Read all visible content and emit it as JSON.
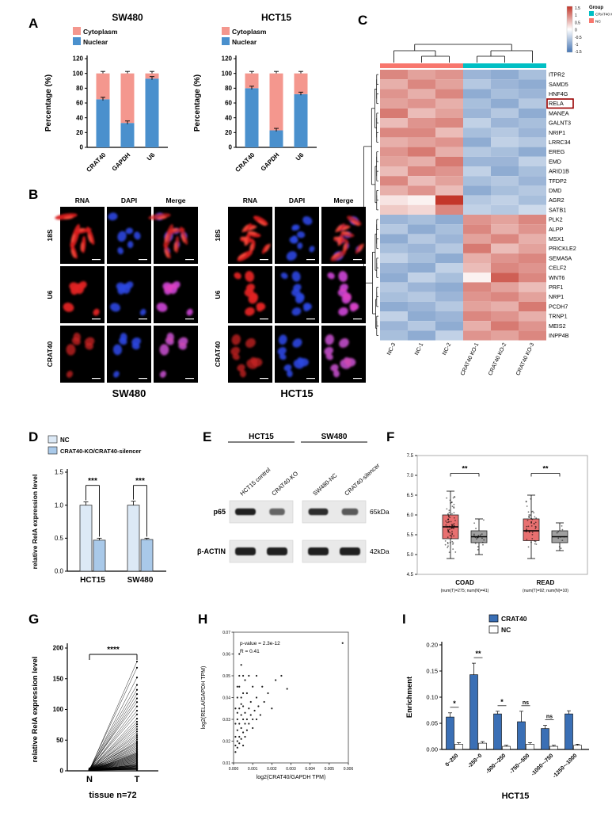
{
  "figure": {
    "panel_labels": {
      "A": "A",
      "B": "B",
      "C": "C",
      "D": "D",
      "E": "E",
      "F": "F",
      "G": "G",
      "H": "H",
      "I": "I"
    }
  },
  "colors": {
    "cytoplasm": "#F4978E",
    "nuclear": "#4A90CD",
    "nc_bar": "#DCE9F6",
    "ko_bar": "#A9C9E9",
    "tumor_box": "#E87070",
    "normal_box": "#A0A0A0",
    "crat40_bar": "#3A6FB5",
    "heat_pos": "#C3372B",
    "heat_neg": "#4575B4",
    "group_ko": "#00BFC4",
    "group_nc": "#F8766D"
  },
  "panelA": {
    "legend": [
      {
        "label": "Cytoplasm"
      },
      {
        "label": "Nuclear"
      }
    ],
    "ylabel": "Percentage (%)",
    "yticks": [
      0,
      20,
      40,
      60,
      80,
      100,
      120
    ],
    "charts": [
      {
        "title": "SW480",
        "categories": [
          "CRAT40",
          "GAPDH",
          "U6"
        ],
        "nuclear": [
          65,
          33,
          93
        ],
        "cytoplasm": [
          35,
          67,
          7
        ]
      },
      {
        "title": "HCT15",
        "categories": [
          "CRAT40",
          "GAPDH",
          "U6"
        ],
        "nuclear": [
          80,
          23,
          72
        ],
        "cytoplasm": [
          20,
          77,
          28
        ]
      }
    ]
  },
  "panelB": {
    "col_headers": [
      "RNA",
      "DAPI",
      "Merge"
    ],
    "row_labels": [
      "18S",
      "U6",
      "CRAT40"
    ],
    "cell_lines": [
      "SW480",
      "HCT15"
    ]
  },
  "panelC": {
    "genes": [
      "ITPR2",
      "SAMD5",
      "HNF4G",
      "RELA",
      "MANEA",
      "GALNT3",
      "NRIP1",
      "LRRC34",
      "EREG",
      "EMD",
      "ARID1B",
      "TFDP2",
      "DMD",
      "AGR2",
      "SATB1",
      "PLK2",
      "ALPP",
      "MSX1",
      "PRICKLE2",
      "SEMA5A",
      "CELF2",
      "WNT6",
      "PRF1",
      "NRP1",
      "PCDH7",
      "TRNP1",
      "MEIS2",
      "INPP4B"
    ],
    "highlight_gene": "RELA",
    "columns": [
      "NC-3",
      "NC-1",
      "NC-2",
      "CRAT40 KO-1",
      "CRAT40 KO-2",
      "CRAT40 KO-3"
    ],
    "matrix": [
      [
        0.9,
        0.7,
        0.8,
        -0.8,
        -0.9,
        -0.7
      ],
      [
        0.6,
        0.9,
        0.7,
        -0.6,
        -0.8,
        -0.9
      ],
      [
        0.8,
        0.6,
        0.9,
        -0.9,
        -0.7,
        -0.8
      ],
      [
        0.7,
        0.8,
        0.6,
        -0.7,
        -0.9,
        -0.6
      ],
      [
        1.0,
        0.5,
        0.7,
        -0.8,
        -0.6,
        -0.9
      ],
      [
        0.5,
        0.8,
        0.9,
        -0.5,
        -0.8,
        -0.7
      ],
      [
        0.9,
        0.9,
        0.5,
        -0.7,
        -0.6,
        -0.8
      ],
      [
        0.6,
        0.7,
        0.8,
        -0.9,
        -0.5,
        -0.6
      ],
      [
        0.8,
        1.0,
        0.6,
        -0.6,
        -0.7,
        -0.9
      ],
      [
        0.7,
        0.6,
        1.0,
        -0.8,
        -0.8,
        -0.5
      ],
      [
        0.5,
        0.9,
        0.8,
        -0.5,
        -0.9,
        -0.7
      ],
      [
        0.9,
        0.5,
        0.7,
        -0.7,
        -0.6,
        -0.8
      ],
      [
        0.6,
        0.8,
        0.5,
        -0.9,
        -0.7,
        -0.6
      ],
      [
        0.2,
        0.1,
        1.5,
        -0.6,
        -0.5,
        -0.7
      ],
      [
        0.4,
        0.3,
        0.9,
        -0.5,
        -0.6,
        -0.4
      ],
      [
        -0.8,
        -0.7,
        -0.9,
        0.8,
        0.7,
        0.9
      ],
      [
        -0.6,
        -0.9,
        -0.7,
        0.9,
        0.6,
        0.8
      ],
      [
        -0.9,
        -0.6,
        -0.8,
        0.7,
        0.9,
        0.6
      ],
      [
        -0.7,
        -0.8,
        -0.6,
        1.0,
        0.5,
        0.7
      ],
      [
        -0.5,
        -0.7,
        -0.9,
        0.6,
        0.8,
        0.9
      ],
      [
        -0.8,
        -0.9,
        -0.5,
        0.5,
        0.9,
        0.8
      ],
      [
        -0.9,
        -0.5,
        -0.7,
        0.1,
        1.2,
        0.9
      ],
      [
        -0.6,
        -0.8,
        -0.9,
        0.9,
        0.7,
        0.5
      ],
      [
        -0.7,
        -0.6,
        -0.8,
        0.8,
        0.9,
        0.7
      ],
      [
        -0.9,
        -0.8,
        -0.6,
        0.7,
        0.6,
        1.0
      ],
      [
        -0.5,
        -0.9,
        -0.8,
        0.9,
        0.8,
        0.6
      ],
      [
        -0.8,
        -0.6,
        -0.9,
        0.6,
        1.0,
        0.8
      ],
      [
        -0.7,
        -0.9,
        -0.5,
        0.8,
        0.7,
        0.9
      ]
    ],
    "legend": {
      "group_title": "Group",
      "groups": [
        {
          "label": "CRAT40 KO"
        },
        {
          "label": "NC"
        }
      ],
      "scale_ticks": [
        "1.5",
        "1",
        "0.5",
        "0",
        "-0.5",
        "-1",
        "-1.5"
      ]
    }
  },
  "panelD": {
    "legend": [
      "NC",
      "CRAT40-KO/CRAT40-silencer"
    ],
    "ylabel": "relative RelA expression level",
    "yticks": [
      "0.0",
      "0.5",
      "1.0",
      "1.5"
    ],
    "categories": [
      "HCT15",
      "SW480"
    ],
    "nc": [
      1.0,
      1.0
    ],
    "nc_err": [
      0.05,
      0.06
    ],
    "ko": [
      0.47,
      0.48
    ],
    "ko_err": [
      0.03,
      0.02
    ],
    "sig": [
      "***",
      "***"
    ]
  },
  "panelE": {
    "groups": [
      {
        "title": "HCT15",
        "lanes": [
          "HCT15 control",
          "CRAT40-KO"
        ]
      },
      {
        "title": "SW480",
        "lanes": [
          "SW480-NC",
          "CRAT40-silencer"
        ]
      }
    ],
    "rows": [
      {
        "label": "p65",
        "size": "65kDa",
        "intensity": [
          [
            1.0,
            0.45
          ],
          [
            0.9,
            0.55
          ]
        ]
      },
      {
        "label": "β-ACTIN",
        "size": "42kDa",
        "intensity": [
          [
            1.0,
            1.0
          ],
          [
            1.0,
            1.0
          ]
        ]
      }
    ]
  },
  "panelF": {
    "yticks": [
      "4.5",
      "5.0",
      "5.5",
      "6.0",
      "6.5",
      "7.0",
      "7.5"
    ],
    "groups": [
      {
        "name": "COAD",
        "sub": "(num(T)=275; num(N)=41)",
        "sig": "**",
        "tumor": {
          "min": 4.9,
          "q1": 5.4,
          "med": 5.7,
          "q3": 6.0,
          "max": 6.6
        },
        "normal": {
          "min": 5.0,
          "q1": 5.3,
          "med": 5.45,
          "q3": 5.6,
          "max": 5.9
        }
      },
      {
        "name": "READ",
        "sub": "(num(T)=92; num(N)=10)",
        "sig": "**",
        "tumor": {
          "min": 4.9,
          "q1": 5.35,
          "med": 5.6,
          "q3": 5.9,
          "max": 6.5
        },
        "normal": {
          "min": 5.1,
          "q1": 5.3,
          "med": 5.45,
          "q3": 5.6,
          "max": 5.8
        }
      }
    ]
  },
  "panelG": {
    "ylabel": "relative RelA expression level",
    "yticks": [
      0,
      50,
      100,
      150,
      200
    ],
    "xticks": [
      "N",
      "T"
    ],
    "xlabel": "tissue n=72",
    "sig": "****",
    "pairs": [
      [
        1,
        178
      ],
      [
        2,
        168
      ],
      [
        1,
        152
      ],
      [
        3,
        140
      ],
      [
        2,
        132
      ],
      [
        1,
        125
      ],
      [
        2,
        118
      ],
      [
        4,
        112
      ],
      [
        1,
        105
      ],
      [
        2,
        98
      ],
      [
        3,
        92
      ],
      [
        1,
        85
      ],
      [
        2,
        80
      ],
      [
        1,
        76
      ],
      [
        3,
        72
      ],
      [
        2,
        68
      ],
      [
        1,
        64
      ],
      [
        2,
        60
      ],
      [
        3,
        57
      ],
      [
        1,
        54
      ],
      [
        2,
        51
      ],
      [
        1,
        48
      ],
      [
        2,
        46
      ],
      [
        3,
        44
      ],
      [
        1,
        42
      ],
      [
        2,
        40
      ],
      [
        1,
        38
      ],
      [
        2,
        36
      ],
      [
        1,
        34
      ],
      [
        2,
        32
      ],
      [
        3,
        30
      ],
      [
        1,
        29
      ],
      [
        2,
        28
      ],
      [
        1,
        27
      ],
      [
        2,
        26
      ],
      [
        1,
        25
      ],
      [
        2,
        24
      ],
      [
        1,
        23
      ],
      [
        2,
        22
      ],
      [
        1,
        21
      ],
      [
        2,
        20
      ],
      [
        1,
        19
      ],
      [
        2,
        18
      ],
      [
        1,
        17
      ],
      [
        2,
        16
      ],
      [
        1,
        15
      ],
      [
        2,
        14
      ],
      [
        1,
        13
      ],
      [
        2,
        12
      ],
      [
        1,
        11
      ],
      [
        2,
        10
      ],
      [
        1,
        10
      ],
      [
        2,
        9
      ],
      [
        1,
        9
      ],
      [
        2,
        8
      ],
      [
        1,
        8
      ],
      [
        2,
        7
      ],
      [
        1,
        7
      ],
      [
        2,
        6
      ],
      [
        1,
        6
      ],
      [
        2,
        5
      ],
      [
        1,
        5
      ],
      [
        2,
        5
      ],
      [
        1,
        4
      ],
      [
        2,
        4
      ],
      [
        1,
        4
      ],
      [
        2,
        3
      ],
      [
        1,
        3
      ],
      [
        1,
        3
      ],
      [
        2,
        2
      ],
      [
        1,
        2
      ],
      [
        1,
        2
      ]
    ]
  },
  "panelH": {
    "annotation": [
      "p-value = 2.3e-12",
      "R = 0.41"
    ],
    "xlabel": "log2(CRAT40/GAPDH TPM)",
    "ylabel": "log2(RELA/GAPDH TPM)",
    "xticks": [
      "0.000",
      "0.001",
      "0.002",
      "0.003",
      "0.004",
      "0.005",
      "0.006"
    ],
    "yticks": [
      "0.01",
      "0.02",
      "0.03",
      "0.04",
      "0.05",
      "0.06",
      "0.07"
    ],
    "xmax": 0.006,
    "ymin": 0.01,
    "ymax": 0.07,
    "points": [
      [
        0.0001,
        0.018
      ],
      [
        0.0001,
        0.022
      ],
      [
        0.0002,
        0.025
      ],
      [
        0.0002,
        0.03
      ],
      [
        0.0002,
        0.02
      ],
      [
        0.0003,
        0.035
      ],
      [
        0.0003,
        0.028
      ],
      [
        0.0003,
        0.022
      ],
      [
        0.0003,
        0.045
      ],
      [
        0.0004,
        0.032
      ],
      [
        0.0004,
        0.026
      ],
      [
        0.0004,
        0.04
      ],
      [
        0.0005,
        0.03
      ],
      [
        0.0005,
        0.024
      ],
      [
        0.0005,
        0.036
      ],
      [
        0.0005,
        0.05
      ],
      [
        0.0006,
        0.028
      ],
      [
        0.0006,
        0.033
      ],
      [
        0.0007,
        0.03
      ],
      [
        0.0007,
        0.025
      ],
      [
        0.0007,
        0.042
      ],
      [
        0.0008,
        0.035
      ],
      [
        0.0008,
        0.028
      ],
      [
        0.0009,
        0.032
      ],
      [
        0.0009,
        0.038
      ],
      [
        0.001,
        0.03
      ],
      [
        0.001,
        0.026
      ],
      [
        0.0011,
        0.034
      ],
      [
        0.0012,
        0.04
      ],
      [
        0.0012,
        0.03
      ],
      [
        0.0013,
        0.036
      ],
      [
        0.0014,
        0.032
      ],
      [
        0.0015,
        0.045
      ],
      [
        0.0016,
        0.038
      ],
      [
        0.0018,
        0.042
      ],
      [
        0.002,
        0.035
      ],
      [
        0.0022,
        0.048
      ],
      [
        0.0025,
        0.05
      ],
      [
        0.0028,
        0.044
      ],
      [
        0.0057,
        0.065
      ],
      [
        0.0001,
        0.015
      ],
      [
        0.0002,
        0.017
      ],
      [
        0.0003,
        0.019
      ],
      [
        0.0004,
        0.021
      ],
      [
        0.0005,
        0.018
      ],
      [
        0.0006,
        0.022
      ],
      [
        0.0002,
        0.04
      ],
      [
        0.0003,
        0.05
      ],
      [
        0.0004,
        0.055
      ],
      [
        0.0001,
        0.035
      ],
      [
        0.0002,
        0.045
      ],
      [
        0.0006,
        0.048
      ],
      [
        0.0008,
        0.05
      ],
      [
        0.001,
        0.045
      ],
      [
        0.0012,
        0.05
      ],
      [
        0.0003,
        0.06
      ],
      [
        0.0001,
        0.028
      ],
      [
        0.0002,
        0.033
      ],
      [
        0.0004,
        0.037
      ],
      [
        0.0005,
        0.042
      ]
    ]
  },
  "panelI": {
    "legend": [
      "CRAT40",
      "NC"
    ],
    "ylabel": "Enrichment",
    "yticks": [
      "0.00",
      "0.05",
      "0.10",
      "0.15",
      "0.20"
    ],
    "categories": [
      "0~250",
      "-250~0",
      "-500~-250",
      "-750~-500",
      "-1000~-750",
      "-1250~-1000"
    ],
    "crat40": [
      0.062,
      0.143,
      0.068,
      0.053,
      0.04,
      0.068
    ],
    "nc": [
      0.01,
      0.012,
      0.006,
      0.01,
      0.006,
      0.008
    ],
    "crat40_err": [
      0.008,
      0.022,
      0.005,
      0.02,
      0.006,
      0.006
    ],
    "nc_err": [
      0.003,
      0.003,
      0.002,
      0.003,
      0.002,
      0.002
    ],
    "sig": [
      "*",
      "**",
      "*",
      "ns",
      "ns",
      ""
    ],
    "xlabel": "HCT15"
  }
}
